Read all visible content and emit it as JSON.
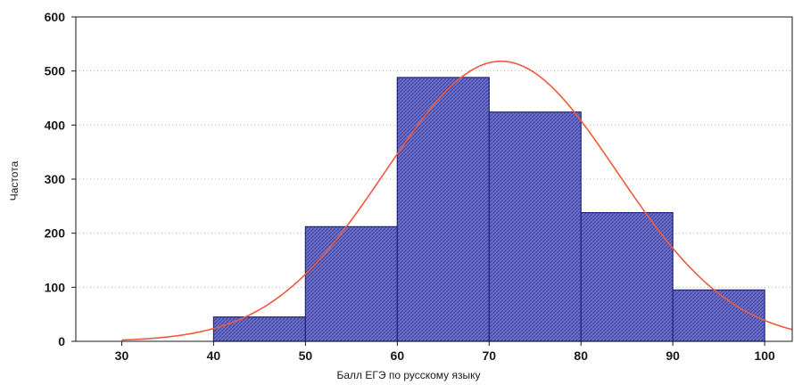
{
  "chart_data": {
    "type": "bar",
    "subtype": "histogram",
    "xlabel": "Балл ЕГЭ  по русскому языку",
    "ylabel": "Частота",
    "xlim": [
      25,
      103
    ],
    "ylim": [
      0,
      600
    ],
    "x_ticks": [
      "30",
      "40",
      "50",
      "60",
      "70",
      "80",
      "90",
      "100"
    ],
    "y_ticks": [
      "0",
      "100",
      "200",
      "300",
      "400",
      "500",
      "600"
    ],
    "bins": [
      {
        "from": 40,
        "to": 50,
        "value": 45
      },
      {
        "from": 50,
        "to": 60,
        "value": 212
      },
      {
        "from": 60,
        "to": 70,
        "value": 488
      },
      {
        "from": 70,
        "to": 80,
        "value": 424
      },
      {
        "from": 80,
        "to": 90,
        "value": 238
      },
      {
        "from": 90,
        "to": 100,
        "value": 95
      }
    ],
    "fit_curve": {
      "type": "normal",
      "mean": 71.3,
      "peak": 518,
      "sd": 12.6,
      "x_range": [
        30,
        103
      ],
      "color": "#f05a3c"
    },
    "bar_color": "#4a4fb0",
    "bar_edge_color": "#1f237a",
    "grid": "dotted-horizontal",
    "legend": "none"
  }
}
